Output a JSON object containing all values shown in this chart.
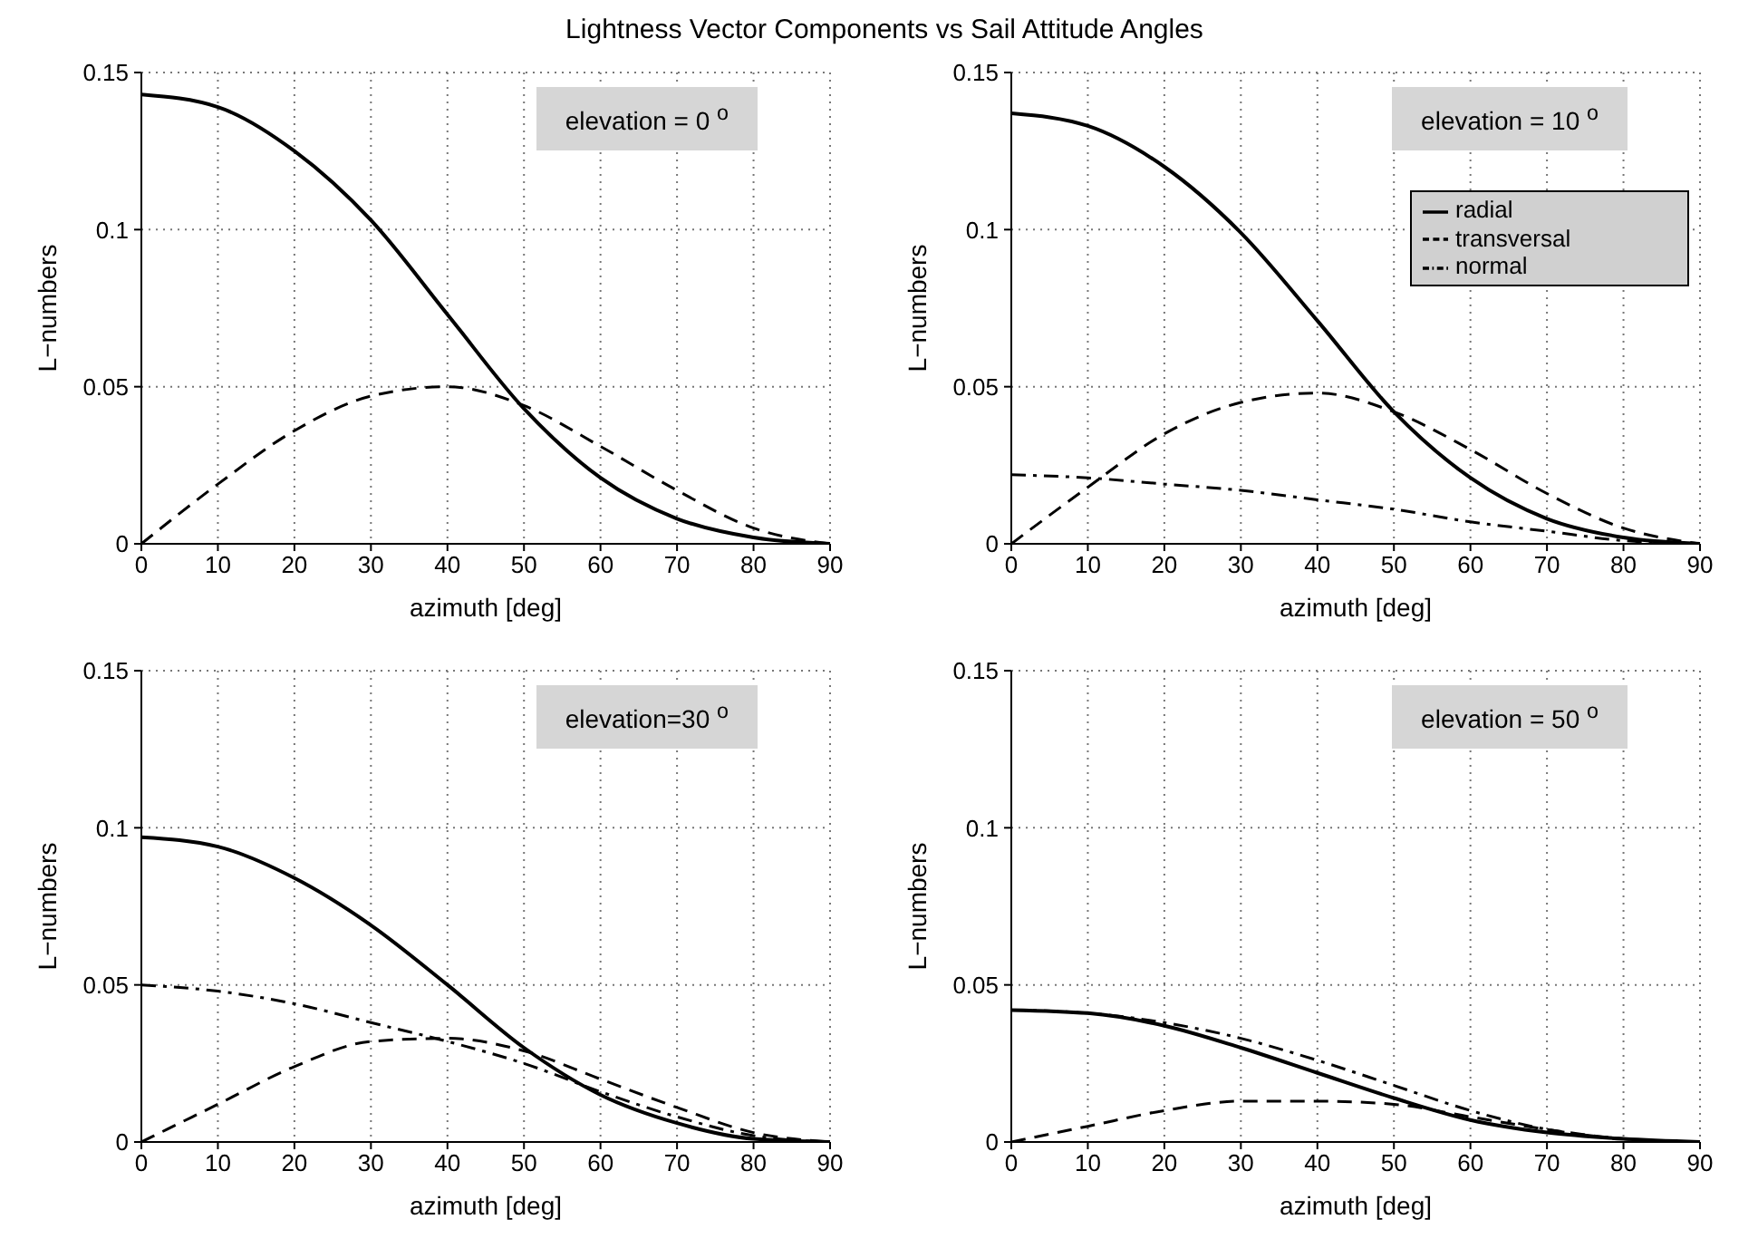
{
  "chart_data": [
    {
      "type": "line",
      "title": "Lightness Vector Components vs Sail Attitude Angles",
      "xlabel": "azimuth [deg]",
      "ylabel": "L−numbers",
      "annotations": [
        "elevation = 0 $^{o}$"
      ],
      "x": [
        0,
        10,
        20,
        30,
        40,
        50,
        60,
        70,
        80,
        90
      ],
      "xlim": [
        0,
        90
      ],
      "xticks": [
        0,
        10,
        20,
        30,
        40,
        50,
        60,
        70,
        80,
        90
      ],
      "ylim": [
        0,
        0.15
      ],
      "yticks": [
        0,
        0.05,
        0.1,
        0.15
      ],
      "grid": true,
      "legend": false,
      "marker": "none",
      "series": [
        {
          "color": "#000000",
          "line_style": "solid",
          "values": [
            0.143,
            0.139,
            0.125,
            0.103,
            0.073,
            0.043,
            0.021,
            0.008,
            0.002,
            0
          ]
        },
        {
          "color": "#000000",
          "line_style": "dashed",
          "values": [
            0,
            0.019,
            0.036,
            0.047,
            0.05,
            0.044,
            0.031,
            0.017,
            0.005,
            0
          ]
        }
      ]
    },
    {
      "type": "line",
      "xlabel": "azimuth [deg]",
      "ylabel": "L−numbers",
      "annotations": [
        "elevation = 10 $^{o}$"
      ],
      "x": [
        0,
        10,
        20,
        30,
        40,
        50,
        60,
        70,
        80,
        90
      ],
      "xlim": [
        0,
        90
      ],
      "xticks": [
        0,
        10,
        20,
        30,
        40,
        50,
        60,
        70,
        80,
        90
      ],
      "ylim": [
        0,
        0.15
      ],
      "yticks": [
        0,
        0.05,
        0.1,
        0.15
      ],
      "grid": true,
      "legend": "top right",
      "marker": "none",
      "series": [
        {
          "name": "radial",
          "color": "#000000",
          "line_style": "solid",
          "values": [
            0.137,
            0.133,
            0.12,
            0.099,
            0.071,
            0.042,
            0.021,
            0.008,
            0.002,
            0
          ]
        },
        {
          "name": "transversal",
          "color": "#000000",
          "line_style": "dashed",
          "values": [
            0,
            0.018,
            0.035,
            0.045,
            0.048,
            0.042,
            0.03,
            0.016,
            0.005,
            0
          ]
        },
        {
          "name": "normal",
          "color": "#000000",
          "line_style": "dashdot",
          "values": [
            0.022,
            0.021,
            0.019,
            0.017,
            0.014,
            0.011,
            0.007,
            0.004,
            0.001,
            0
          ]
        }
      ]
    },
    {
      "type": "line",
      "xlabel": "azimuth [deg]",
      "ylabel": "L−numbers",
      "annotations": [
        "elevation=30 $^{o}$"
      ],
      "x": [
        0,
        10,
        20,
        30,
        40,
        50,
        60,
        70,
        80,
        90
      ],
      "xlim": [
        0,
        90
      ],
      "xticks": [
        0,
        10,
        20,
        30,
        40,
        50,
        60,
        70,
        80,
        90
      ],
      "ylim": [
        0,
        0.15
      ],
      "yticks": [
        0,
        0.05,
        0.1,
        0.15
      ],
      "grid": true,
      "legend": false,
      "marker": "none",
      "series": [
        {
          "color": "#000000",
          "line_style": "solid",
          "values": [
            0.097,
            0.094,
            0.084,
            0.069,
            0.05,
            0.03,
            0.015,
            0.006,
            0.001,
            0
          ]
        },
        {
          "color": "#000000",
          "line_style": "dashed",
          "values": [
            0,
            0.012,
            0.024,
            0.032,
            0.033,
            0.029,
            0.02,
            0.011,
            0.003,
            0
          ]
        },
        {
          "color": "#000000",
          "line_style": "dashdot",
          "values": [
            0.05,
            0.048,
            0.044,
            0.038,
            0.032,
            0.025,
            0.016,
            0.008,
            0.002,
            0
          ]
        }
      ]
    },
    {
      "type": "line",
      "xlabel": "azimuth [deg]",
      "ylabel": "L−numbers",
      "annotations": [
        "elevation = 50 $^{o}$"
      ],
      "x": [
        0,
        10,
        20,
        30,
        40,
        50,
        60,
        70,
        80,
        90
      ],
      "xlim": [
        0,
        90
      ],
      "xticks": [
        0,
        10,
        20,
        30,
        40,
        50,
        60,
        70,
        80,
        90
      ],
      "ylim": [
        0,
        0.15
      ],
      "yticks": [
        0,
        0.05,
        0.1,
        0.15
      ],
      "grid": true,
      "legend": false,
      "marker": "none",
      "series": [
        {
          "color": "#000000",
          "line_style": "solid",
          "values": [
            0.042,
            0.041,
            0.037,
            0.03,
            0.022,
            0.014,
            0.007,
            0.003,
            0.001,
            0
          ]
        },
        {
          "color": "#000000",
          "line_style": "dashed",
          "values": [
            0,
            0.005,
            0.01,
            0.013,
            0.013,
            0.012,
            0.008,
            0.004,
            0.001,
            0
          ]
        },
        {
          "color": "#000000",
          "line_style": "dashdot",
          "values": [
            0.042,
            0.041,
            0.038,
            0.033,
            0.026,
            0.018,
            0.01,
            0.004,
            0.001,
            0
          ]
        }
      ]
    }
  ]
}
